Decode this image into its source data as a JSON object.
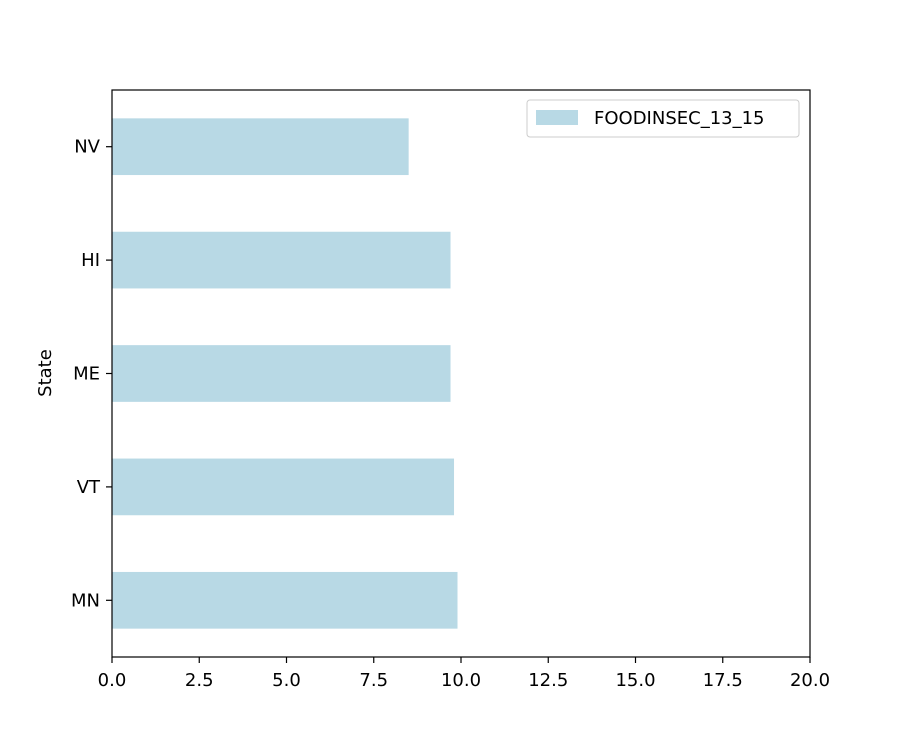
{
  "chart_data": {
    "type": "bar",
    "orientation": "horizontal",
    "title": "",
    "xlabel": "",
    "ylabel": "State",
    "categories": [
      "MN",
      "VT",
      "ME",
      "HI",
      "NV"
    ],
    "series": [
      {
        "name": "FOODINSEC_13_15",
        "values": [
          9.9,
          9.8,
          9.7,
          9.7,
          8.5
        ],
        "color": "#b8d9e5"
      }
    ],
    "xlim": [
      0,
      20
    ],
    "xticks": [
      "0.0",
      "2.5",
      "5.0",
      "7.5",
      "10.0",
      "12.5",
      "15.0",
      "17.5",
      "20.0"
    ],
    "grid": false,
    "legend_position": "top-right"
  }
}
